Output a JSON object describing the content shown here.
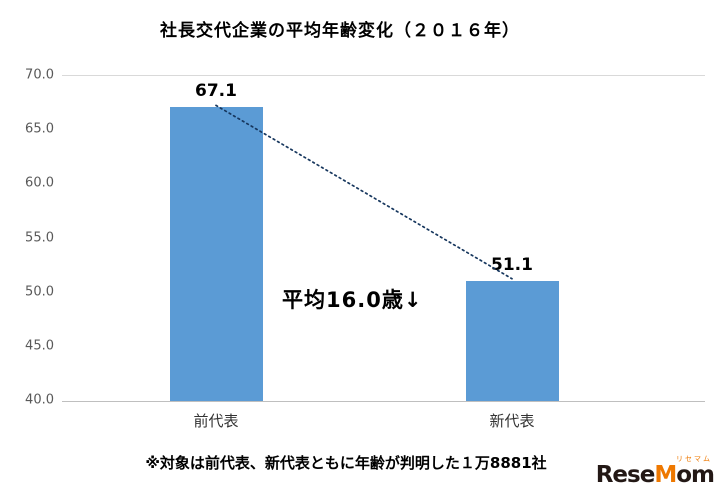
{
  "chart_data": {
    "type": "bar",
    "title": "社長交代企業の平均年齢変化（２０１６年）",
    "categories": [
      "前代表",
      "新代表"
    ],
    "values": [
      67.1,
      51.1
    ],
    "value_labels": [
      "67.1",
      "51.1"
    ],
    "ylim": [
      40.0,
      70.0
    ],
    "ytick_step": 5.0,
    "yticks": [
      "70.0",
      "65.0",
      "60.0",
      "55.0",
      "50.0",
      "45.0",
      "40.0"
    ],
    "xlabel": "",
    "ylabel": "",
    "grid": "top-and-baseline-only",
    "legend": "none",
    "bar_color": "#5b9bd5",
    "connector_color": "#17375e",
    "annotation": "平均16.0歳↓"
  },
  "footnote": {
    "text": "※対象は前代表、新代表ともに年齢が判明した１万8881社"
  },
  "logo": {
    "ruby": "リセマム",
    "part1": "Rese",
    "part2": "M",
    "part3": "om",
    "accent_color": "#ee7800",
    "text_color": "#231815"
  }
}
